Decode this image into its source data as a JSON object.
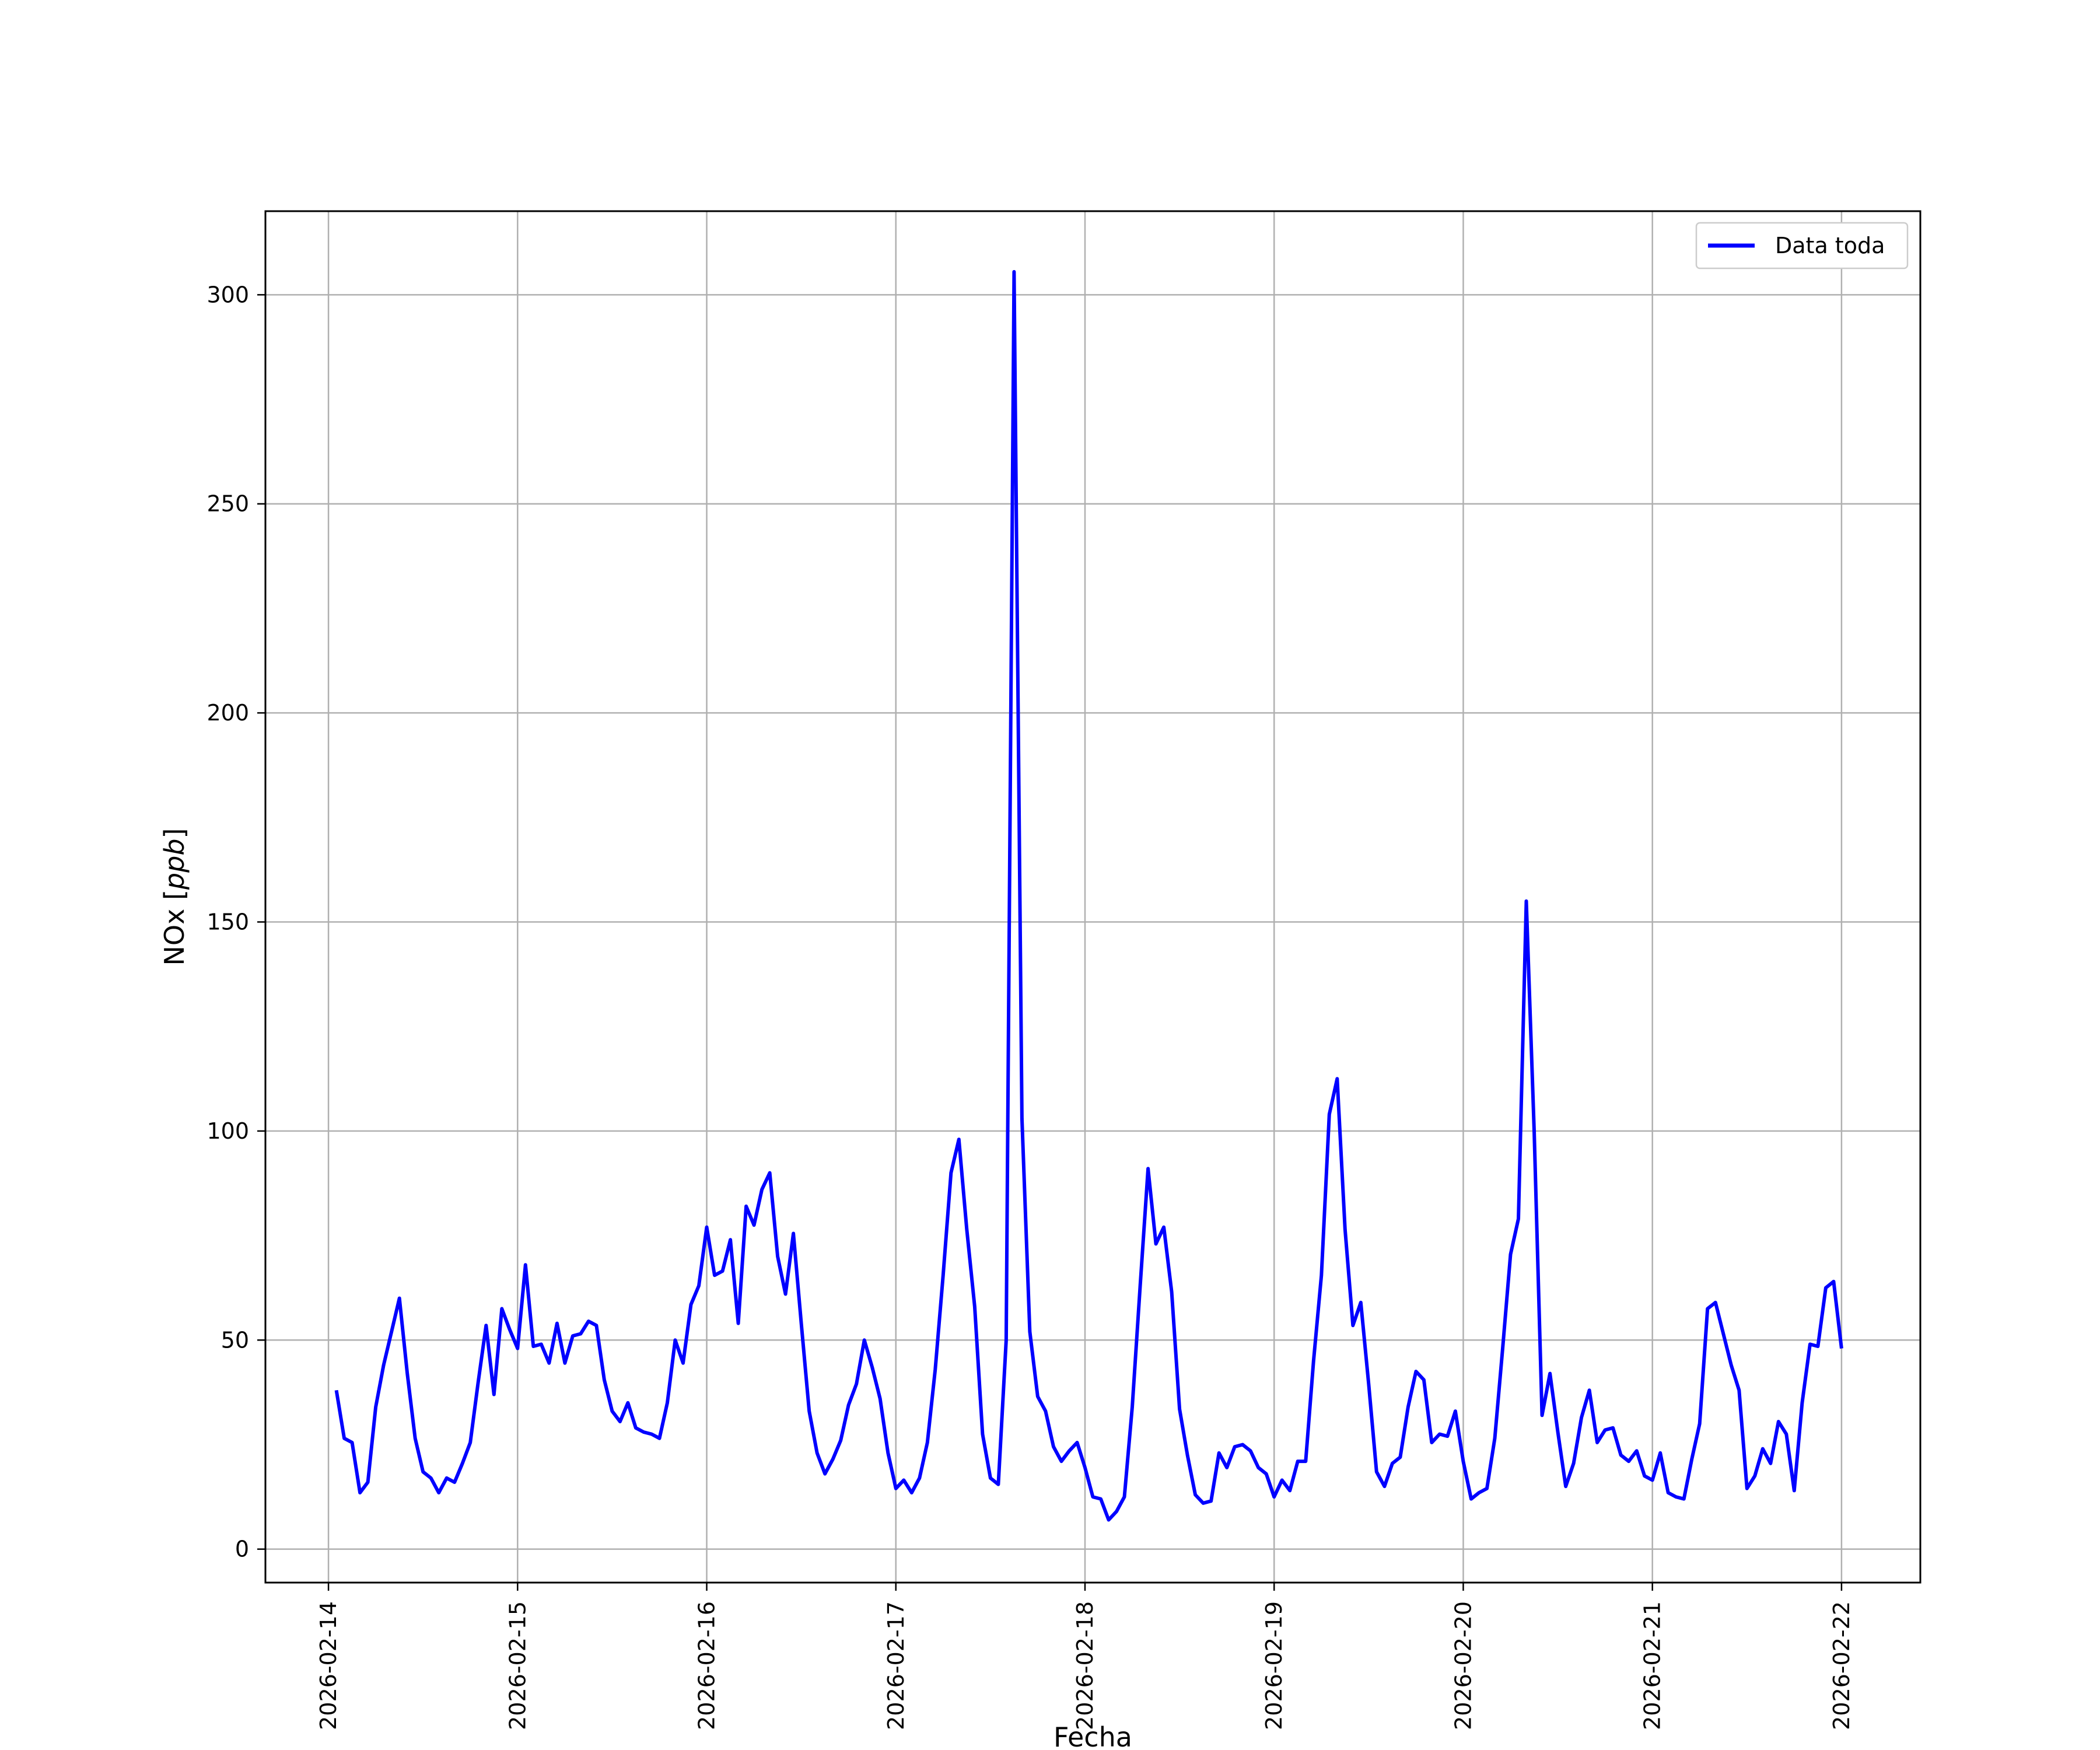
{
  "chart_data": {
    "type": "line",
    "title": "",
    "xlabel": "Fecha",
    "ylabel": "NOx [ppb]",
    "ylabel_parts": {
      "text": "NOx [",
      "italic": "ppb",
      "close": "]"
    },
    "xlim": [
      "2026-02-13 16:00",
      "2026-02-22 10:00"
    ],
    "ylim": [
      -8,
      320
    ],
    "x_ticks": [
      "2026-02-14",
      "2026-02-15",
      "2026-02-16",
      "2026-02-17",
      "2026-02-18",
      "2026-02-19",
      "2026-02-20",
      "2026-02-21",
      "2026-02-22"
    ],
    "y_ticks": [
      0,
      50,
      100,
      150,
      200,
      250,
      300
    ],
    "grid": true,
    "legend_position": "top-right",
    "color": "#0000ff",
    "series": [
      {
        "name": "Data toda",
        "points": [
          [
            "2026-02-14 01:00",
            38.0
          ],
          [
            "2026-02-14 02:00",
            26.5
          ],
          [
            "2026-02-14 03:00",
            25.5
          ],
          [
            "2026-02-14 04:00",
            13.5
          ],
          [
            "2026-02-14 05:00",
            16.0
          ],
          [
            "2026-02-14 06:00",
            34.0
          ],
          [
            "2026-02-14 07:00",
            44.0
          ],
          [
            "2026-02-14 08:00",
            52.0
          ],
          [
            "2026-02-14 09:00",
            60.0
          ],
          [
            "2026-02-14 10:00",
            42.0
          ],
          [
            "2026-02-14 11:00",
            26.5
          ],
          [
            "2026-02-14 12:00",
            18.5
          ],
          [
            "2026-02-14 13:00",
            17.0
          ],
          [
            "2026-02-14 14:00",
            13.5
          ],
          [
            "2026-02-14 15:00",
            17.0
          ],
          [
            "2026-02-14 16:00",
            16.0
          ],
          [
            "2026-02-14 17:00",
            20.5
          ],
          [
            "2026-02-14 18:00",
            25.5
          ],
          [
            "2026-02-14 19:00",
            40.0
          ],
          [
            "2026-02-14 20:00",
            53.5
          ],
          [
            "2026-02-14 21:00",
            37.0
          ],
          [
            "2026-02-14 22:00",
            57.5
          ],
          [
            "2026-02-14 23:00",
            52.5
          ],
          [
            "2026-02-15 00:00",
            48.0
          ],
          [
            "2026-02-15 01:00",
            68.0
          ],
          [
            "2026-02-15 02:00",
            48.5
          ],
          [
            "2026-02-15 03:00",
            49.0
          ],
          [
            "2026-02-15 04:00",
            44.5
          ],
          [
            "2026-02-15 05:00",
            54.0
          ],
          [
            "2026-02-15 06:00",
            44.5
          ],
          [
            "2026-02-15 07:00",
            51.0
          ],
          [
            "2026-02-15 08:00",
            51.5
          ],
          [
            "2026-02-15 09:00",
            54.5
          ],
          [
            "2026-02-15 10:00",
            53.5
          ],
          [
            "2026-02-15 11:00",
            40.5
          ],
          [
            "2026-02-15 12:00",
            33.0
          ],
          [
            "2026-02-15 13:00",
            30.5
          ],
          [
            "2026-02-15 14:00",
            35.0
          ],
          [
            "2026-02-15 15:00",
            29.0
          ],
          [
            "2026-02-15 16:00",
            28.0
          ],
          [
            "2026-02-15 17:00",
            27.5
          ],
          [
            "2026-02-15 18:00",
            26.5
          ],
          [
            "2026-02-15 19:00",
            35.0
          ],
          [
            "2026-02-15 20:00",
            50.0
          ],
          [
            "2026-02-15 21:00",
            44.5
          ],
          [
            "2026-02-15 22:00",
            58.5
          ],
          [
            "2026-02-15 23:00",
            63.0
          ],
          [
            "2026-02-16 00:00",
            77.0
          ],
          [
            "2026-02-16 01:00",
            65.5
          ],
          [
            "2026-02-16 02:00",
            66.5
          ],
          [
            "2026-02-16 03:00",
            74.0
          ],
          [
            "2026-02-16 04:00",
            54.0
          ],
          [
            "2026-02-16 05:00",
            82.0
          ],
          [
            "2026-02-16 06:00",
            77.5
          ],
          [
            "2026-02-16 07:00",
            86.0
          ],
          [
            "2026-02-16 08:00",
            90.0
          ],
          [
            "2026-02-16 09:00",
            70.0
          ],
          [
            "2026-02-16 10:00",
            61.0
          ],
          [
            "2026-02-16 11:00",
            75.5
          ],
          [
            "2026-02-16 12:00",
            54.0
          ],
          [
            "2026-02-16 13:00",
            33.0
          ],
          [
            "2026-02-16 14:00",
            23.0
          ],
          [
            "2026-02-16 15:00",
            18.0
          ],
          [
            "2026-02-16 16:00",
            21.5
          ],
          [
            "2026-02-16 17:00",
            26.0
          ],
          [
            "2026-02-16 18:00",
            34.5
          ],
          [
            "2026-02-16 19:00",
            39.5
          ],
          [
            "2026-02-16 20:00",
            50.0
          ],
          [
            "2026-02-16 21:00",
            43.5
          ],
          [
            "2026-02-16 22:00",
            36.0
          ],
          [
            "2026-02-16 23:00",
            23.0
          ],
          [
            "2026-02-17 00:00",
            14.5
          ],
          [
            "2026-02-17 01:00",
            16.5
          ],
          [
            "2026-02-17 02:00",
            13.5
          ],
          [
            "2026-02-17 03:00",
            17.0
          ],
          [
            "2026-02-17 04:00",
            25.5
          ],
          [
            "2026-02-17 05:00",
            43.0
          ],
          [
            "2026-02-17 06:00",
            65.5
          ],
          [
            "2026-02-17 07:00",
            90.0
          ],
          [
            "2026-02-17 08:00",
            98.0
          ],
          [
            "2026-02-17 09:00",
            76.5
          ],
          [
            "2026-02-17 10:00",
            58.0
          ],
          [
            "2026-02-17 11:00",
            27.5
          ],
          [
            "2026-02-17 12:00",
            17.0
          ],
          [
            "2026-02-17 13:00",
            15.5
          ],
          [
            "2026-02-17 14:00",
            50.0
          ],
          [
            "2026-02-17 15:00",
            305.5
          ],
          [
            "2026-02-17 16:00",
            103.0
          ],
          [
            "2026-02-17 17:00",
            52.0
          ],
          [
            "2026-02-17 18:00",
            36.5
          ],
          [
            "2026-02-17 19:00",
            33.0
          ],
          [
            "2026-02-17 20:00",
            24.5
          ],
          [
            "2026-02-17 21:00",
            21.0
          ],
          [
            "2026-02-17 22:00",
            23.5
          ],
          [
            "2026-02-17 23:00",
            25.5
          ],
          [
            "2026-02-18 00:00",
            19.5
          ],
          [
            "2026-02-18 01:00",
            12.5
          ],
          [
            "2026-02-18 02:00",
            12.0
          ],
          [
            "2026-02-18 03:00",
            7.0
          ],
          [
            "2026-02-18 04:00",
            9.0
          ],
          [
            "2026-02-18 05:00",
            12.5
          ],
          [
            "2026-02-18 06:00",
            34.0
          ],
          [
            "2026-02-18 07:00",
            63.0
          ],
          [
            "2026-02-18 08:00",
            91.0
          ],
          [
            "2026-02-18 09:00",
            73.0
          ],
          [
            "2026-02-18 10:00",
            77.0
          ],
          [
            "2026-02-18 11:00",
            61.5
          ],
          [
            "2026-02-18 12:00",
            33.5
          ],
          [
            "2026-02-18 13:00",
            22.5
          ],
          [
            "2026-02-18 14:00",
            13.0
          ],
          [
            "2026-02-18 15:00",
            11.0
          ],
          [
            "2026-02-18 16:00",
            11.5
          ],
          [
            "2026-02-18 17:00",
            23.0
          ],
          [
            "2026-02-18 18:00",
            19.5
          ],
          [
            "2026-02-18 19:00",
            24.5
          ],
          [
            "2026-02-18 20:00",
            25.0
          ],
          [
            "2026-02-18 21:00",
            23.5
          ],
          [
            "2026-02-18 22:00",
            19.5
          ],
          [
            "2026-02-18 23:00",
            18.0
          ],
          [
            "2026-02-19 00:00",
            12.5
          ],
          [
            "2026-02-19 01:00",
            16.5
          ],
          [
            "2026-02-19 02:00",
            14.0
          ],
          [
            "2026-02-19 03:00",
            21.0
          ],
          [
            "2026-02-19 04:00",
            21.0
          ],
          [
            "2026-02-19 05:00",
            45.0
          ],
          [
            "2026-02-19 06:00",
            65.5
          ],
          [
            "2026-02-19 07:00",
            104.0
          ],
          [
            "2026-02-19 08:00",
            112.5
          ],
          [
            "2026-02-19 09:00",
            76.5
          ],
          [
            "2026-02-19 10:00",
            53.5
          ],
          [
            "2026-02-19 11:00",
            59.0
          ],
          [
            "2026-02-19 12:00",
            39.5
          ],
          [
            "2026-02-19 13:00",
            18.5
          ],
          [
            "2026-02-19 14:00",
            15.0
          ],
          [
            "2026-02-19 15:00",
            20.5
          ],
          [
            "2026-02-19 16:00",
            22.0
          ],
          [
            "2026-02-19 17:00",
            34.0
          ],
          [
            "2026-02-19 18:00",
            42.5
          ],
          [
            "2026-02-19 19:00",
            40.5
          ],
          [
            "2026-02-19 20:00",
            25.5
          ],
          [
            "2026-02-19 21:00",
            27.5
          ],
          [
            "2026-02-19 22:00",
            27.0
          ],
          [
            "2026-02-19 23:00",
            33.0
          ],
          [
            "2026-02-20 00:00",
            21.0
          ],
          [
            "2026-02-20 01:00",
            12.0
          ],
          [
            "2026-02-20 02:00",
            13.5
          ],
          [
            "2026-02-20 03:00",
            14.5
          ],
          [
            "2026-02-20 04:00",
            26.5
          ],
          [
            "2026-02-20 05:00",
            48.0
          ],
          [
            "2026-02-20 06:00",
            70.5
          ],
          [
            "2026-02-20 07:00",
            79.0
          ],
          [
            "2026-02-20 08:00",
            155.0
          ],
          [
            "2026-02-20 09:00",
            100.0
          ],
          [
            "2026-02-20 10:00",
            32.0
          ],
          [
            "2026-02-20 11:00",
            42.0
          ],
          [
            "2026-02-20 12:00",
            28.0
          ],
          [
            "2026-02-20 13:00",
            15.0
          ],
          [
            "2026-02-20 14:00",
            20.5
          ],
          [
            "2026-02-20 15:00",
            31.5
          ],
          [
            "2026-02-20 16:00",
            38.0
          ],
          [
            "2026-02-20 17:00",
            25.5
          ],
          [
            "2026-02-20 18:00",
            28.5
          ],
          [
            "2026-02-20 19:00",
            29.0
          ],
          [
            "2026-02-20 20:00",
            22.5
          ],
          [
            "2026-02-20 21:00",
            21.0
          ],
          [
            "2026-02-20 22:00",
            23.5
          ],
          [
            "2026-02-20 23:00",
            17.5
          ],
          [
            "2026-02-21 00:00",
            16.5
          ],
          [
            "2026-02-21 01:00",
            23.0
          ],
          [
            "2026-02-21 02:00",
            13.5
          ],
          [
            "2026-02-21 03:00",
            12.5
          ],
          [
            "2026-02-21 04:00",
            12.0
          ],
          [
            "2026-02-21 05:00",
            21.5
          ],
          [
            "2026-02-21 06:00",
            30.0
          ],
          [
            "2026-02-21 07:00",
            57.5
          ],
          [
            "2026-02-21 08:00",
            59.0
          ],
          [
            "2026-02-21 09:00",
            51.5
          ],
          [
            "2026-02-21 10:00",
            44.0
          ],
          [
            "2026-02-21 11:00",
            38.0
          ],
          [
            "2026-02-21 12:00",
            14.5
          ],
          [
            "2026-02-21 13:00",
            17.5
          ],
          [
            "2026-02-21 14:00",
            24.0
          ],
          [
            "2026-02-21 15:00",
            20.5
          ],
          [
            "2026-02-21 16:00",
            30.5
          ],
          [
            "2026-02-21 17:00",
            27.5
          ],
          [
            "2026-02-21 18:00",
            14.0
          ],
          [
            "2026-02-21 19:00",
            35.0
          ],
          [
            "2026-02-21 20:00",
            49.0
          ],
          [
            "2026-02-21 21:00",
            48.5
          ],
          [
            "2026-02-21 22:00",
            62.5
          ],
          [
            "2026-02-21 23:00",
            64.0
          ],
          [
            "2026-02-22 00:00",
            48.0
          ]
        ]
      }
    ]
  }
}
